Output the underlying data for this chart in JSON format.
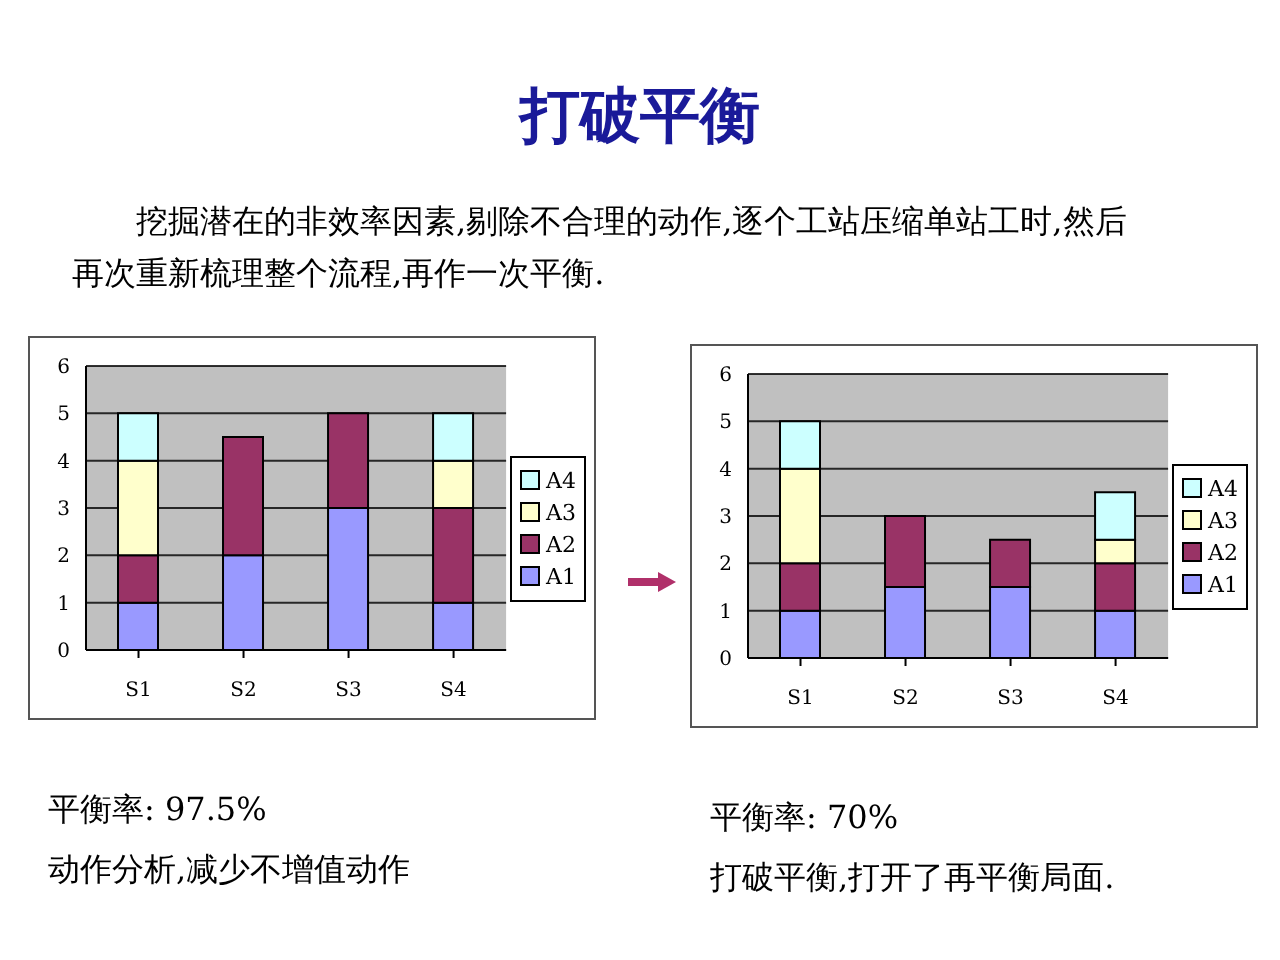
{
  "chart_data": [
    {
      "type": "bar",
      "title": "打破平衡",
      "subtitle": "挖掘潜在的非效率因素,剔除不合理的动作,逐个工站压缩单站工时,然后再次重新梳理整个流程,再作一次平衡.",
      "stacked": true,
      "categories": [
        "S1",
        "S2",
        "S3",
        "S4"
      ],
      "series": [
        {
          "name": "A1",
          "color": "#9999ff",
          "values": [
            1,
            2,
            3,
            1
          ]
        },
        {
          "name": "A2",
          "color": "#993366",
          "values": [
            1,
            2.5,
            2,
            2
          ]
        },
        {
          "name": "A3",
          "color": "#ffffcc",
          "values": [
            2,
            null,
            null,
            1
          ]
        },
        {
          "name": "A4",
          "color": "#ccffff",
          "values": [
            1,
            null,
            null,
            1
          ]
        }
      ],
      "ylim": [
        0,
        6
      ],
      "yticks": [
        0,
        1,
        2,
        3,
        4,
        5,
        6
      ],
      "grid": "y",
      "legend": "right",
      "annotations": [
        "平衡率: 97.5%",
        "动作分析,减少不增值动作"
      ]
    },
    {
      "type": "bar",
      "stacked": true,
      "categories": [
        "S1",
        "S2",
        "S3",
        "S4"
      ],
      "series": [
        {
          "name": "A1",
          "color": "#9999ff",
          "values": [
            1,
            1.5,
            1.5,
            1
          ]
        },
        {
          "name": "A2",
          "color": "#993366",
          "values": [
            1,
            1.5,
            1,
            1
          ]
        },
        {
          "name": "A3",
          "color": "#ffffcc",
          "values": [
            2,
            null,
            null,
            0.5
          ]
        },
        {
          "name": "A4",
          "color": "#ccffff",
          "values": [
            1,
            null,
            null,
            1
          ]
        }
      ],
      "ylim": [
        0,
        6
      ],
      "yticks": [
        0,
        1,
        2,
        3,
        4,
        5,
        6
      ],
      "grid": "y",
      "legend": "right",
      "annotations": [
        "平衡率: 70%",
        "打破平衡,打开了再平衡局面."
      ]
    }
  ]
}
